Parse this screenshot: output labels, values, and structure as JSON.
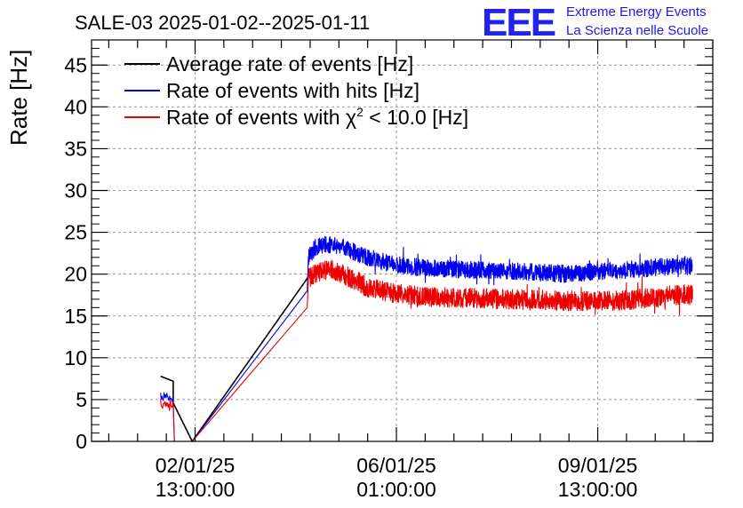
{
  "header": {
    "title": "SALE-03 2025-01-02--2025-01-11",
    "logo_letters": "EEE",
    "logo_line1": "Extreme Energy Events",
    "logo_line2": "La Scienza nelle Scuole"
  },
  "colors": {
    "average": "#000000",
    "hits": "#0000ee",
    "chi2": "#ee0000",
    "grid": "#9a9a9a",
    "logo": "#2222ee"
  },
  "chart_data": {
    "type": "line",
    "title": "SALE-03 2025-01-02--2025-01-11",
    "xlabel": "",
    "ylabel": "Rate [Hz]",
    "ylim": [
      0,
      48
    ],
    "xlim": [
      -1.8,
      9.0
    ],
    "x_unit": "days since 02/01/25 13:00:00",
    "grid": true,
    "legend_position": "top-left",
    "y_ticks": [
      0,
      5,
      10,
      15,
      20,
      25,
      30,
      35,
      40,
      45
    ],
    "x_ticks": [
      {
        "x": 0.0,
        "line1": "02/01/25",
        "line2": "13:00:00"
      },
      {
        "x": 3.5,
        "line1": "06/01/25",
        "line2": "01:00:00"
      },
      {
        "x": 7.0,
        "line1": "09/01/25",
        "line2": "13:00:00"
      }
    ],
    "series": [
      {
        "name": "Average rate of events [Hz]",
        "label_pre": "Average rate of events [Hz]",
        "color": "#000000",
        "noise": 0,
        "x": [
          -0.6,
          -0.6,
          -0.38,
          -0.38,
          -0.05,
          1.92,
          2.0
        ],
        "y": [
          7.8,
          7.8,
          7.2,
          4.6,
          0.0,
          19.2,
          20.0
        ]
      },
      {
        "name": "Rate of events with hits [Hz]",
        "label_pre": "Rate of events with hits [Hz]",
        "color": "#0000ee",
        "noise": 1.3,
        "x": [
          -0.6,
          -0.38,
          -0.36,
          -0.05,
          1.95,
          1.97,
          2.1,
          2.3,
          2.5,
          2.7,
          3.0,
          3.4,
          4.0,
          5.0,
          6.0,
          6.5,
          7.0,
          7.5,
          8.0,
          8.5,
          8.65
        ],
        "y": [
          5.5,
          5.0,
          0.0,
          0.0,
          18.0,
          22.0,
          23.3,
          23.6,
          23.4,
          22.8,
          22.0,
          21.2,
          20.7,
          20.5,
          20.2,
          20.0,
          20.3,
          20.5,
          20.8,
          21.0,
          20.8
        ]
      },
      {
        "name": "Rate of events with χ² < 10.0 [Hz]",
        "label_pre": "Rate of events with ",
        "label_chi": "χ",
        "label_sup": "2",
        "label_post": " < 10.0 [Hz]",
        "color": "#ee0000",
        "noise": 1.5,
        "x": [
          -0.6,
          -0.38,
          -0.36,
          -0.05,
          1.95,
          1.97,
          2.1,
          2.3,
          2.5,
          2.7,
          3.0,
          3.4,
          4.0,
          5.0,
          6.0,
          6.5,
          7.0,
          7.5,
          8.0,
          8.5,
          8.65
        ],
        "y": [
          4.7,
          4.3,
          0.0,
          0.0,
          16.0,
          19.5,
          20.2,
          20.6,
          20.3,
          19.5,
          18.4,
          17.8,
          17.3,
          17.1,
          16.9,
          16.8,
          16.8,
          16.9,
          17.2,
          17.6,
          17.5
        ]
      }
    ]
  }
}
